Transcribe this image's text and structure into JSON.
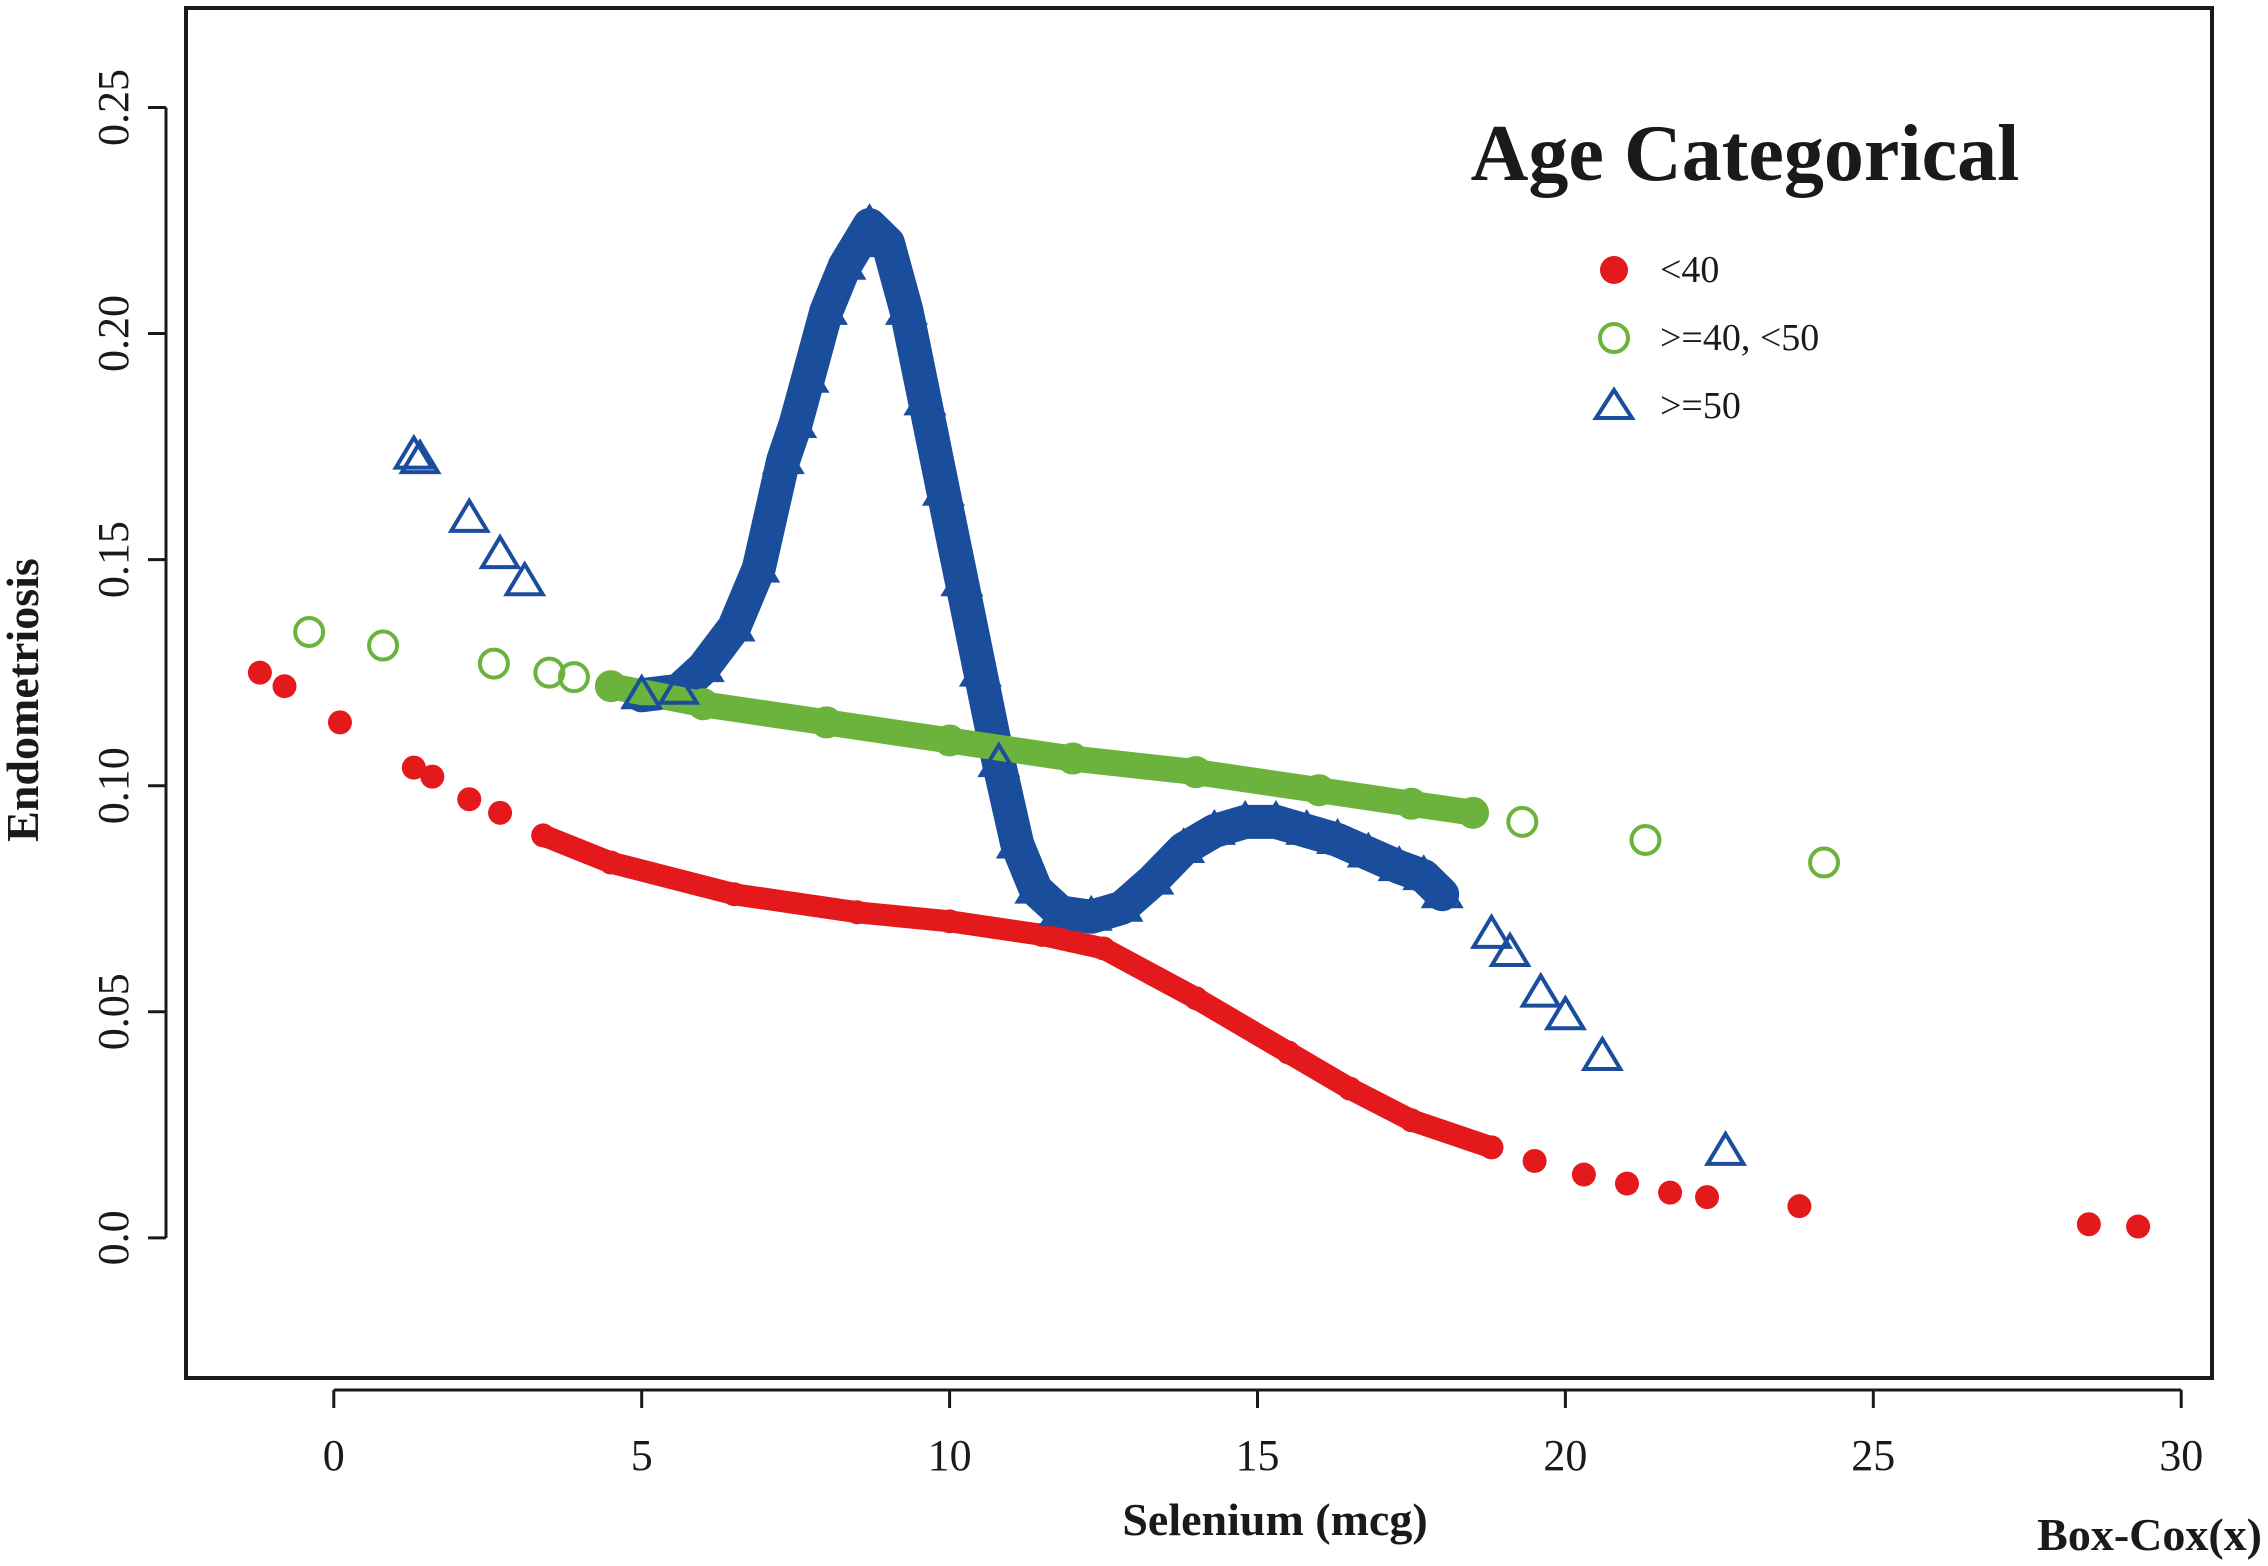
{
  "chart_data": {
    "type": "scatter",
    "title": "",
    "xlabel": "Selenium (mcg)",
    "ylabel": "Endometriosis",
    "corner_label": "Box-Cox(x)",
    "xlim": [
      -2.4,
      30.5
    ],
    "ylim": [
      -0.031,
      0.272
    ],
    "x_ticks": [
      0,
      5,
      10,
      15,
      20,
      25,
      30
    ],
    "x_tick_labels": [
      "0",
      "5",
      "10",
      "15",
      "20",
      "25",
      "30"
    ],
    "y_ticks": [
      0.0,
      0.05,
      0.1,
      0.15,
      0.2,
      0.25
    ],
    "y_tick_labels": [
      "0.0",
      "0.05",
      "0.10",
      "0.15",
      "0.20",
      "0.25"
    ],
    "grid": false,
    "legend": {
      "title": "Age Categorical",
      "position": "top-right"
    },
    "colors": {
      "lt40": "#e3191c",
      "mid": "#6bb33c",
      "ge50": "#1a4d9c",
      "axis": "#1a1a1a"
    },
    "series": [
      {
        "name": "<40",
        "marker": "filled-circle",
        "color": "#e3191c",
        "points": [
          [
            -1.2,
            0.125
          ],
          [
            -0.8,
            0.122
          ],
          [
            0.1,
            0.114
          ],
          [
            1.3,
            0.104
          ],
          [
            1.6,
            0.102
          ],
          [
            2.2,
            0.097
          ],
          [
            2.7,
            0.094
          ],
          [
            3.4,
            0.089
          ],
          [
            4.5,
            0.083
          ],
          [
            6.5,
            0.076
          ],
          [
            8.5,
            0.072
          ],
          [
            10.0,
            0.07
          ],
          [
            11.5,
            0.067
          ],
          [
            12.5,
            0.064
          ],
          [
            14.0,
            0.053
          ],
          [
            15.5,
            0.041
          ],
          [
            16.5,
            0.033
          ],
          [
            17.5,
            0.026
          ],
          [
            18.8,
            0.02
          ],
          [
            19.5,
            0.017
          ],
          [
            20.3,
            0.014
          ],
          [
            21.0,
            0.012
          ],
          [
            21.7,
            0.01
          ],
          [
            22.3,
            0.009
          ],
          [
            23.8,
            0.007
          ],
          [
            28.5,
            0.003
          ],
          [
            29.3,
            0.0025
          ]
        ]
      },
      {
        "name": ">=40, <50",
        "marker": "open-circle",
        "color": "#6bb33c",
        "points": [
          [
            -0.4,
            0.134
          ],
          [
            0.8,
            0.131
          ],
          [
            2.6,
            0.127
          ],
          [
            3.5,
            0.125
          ],
          [
            3.9,
            0.124
          ],
          [
            4.5,
            0.122
          ],
          [
            6.0,
            0.118
          ],
          [
            8.0,
            0.114
          ],
          [
            10.0,
            0.11
          ],
          [
            12.0,
            0.106
          ],
          [
            14.0,
            0.103
          ],
          [
            16.0,
            0.099
          ],
          [
            17.5,
            0.096
          ],
          [
            18.5,
            0.094
          ],
          [
            19.3,
            0.092
          ],
          [
            21.3,
            0.088
          ],
          [
            24.2,
            0.083
          ]
        ]
      },
      {
        "name": ">=50",
        "marker": "open-triangle",
        "color": "#1a4d9c",
        "points": [
          [
            1.3,
            0.173
          ],
          [
            1.4,
            0.172
          ],
          [
            2.2,
            0.159
          ],
          [
            2.7,
            0.151
          ],
          [
            3.1,
            0.145
          ],
          [
            5.0,
            0.12
          ],
          [
            5.6,
            0.121
          ],
          [
            6.0,
            0.126
          ],
          [
            6.5,
            0.135
          ],
          [
            6.9,
            0.148
          ],
          [
            7.3,
            0.172
          ],
          [
            7.5,
            0.18
          ],
          [
            7.7,
            0.19
          ],
          [
            8.0,
            0.205
          ],
          [
            8.3,
            0.215
          ],
          [
            8.7,
            0.224
          ],
          [
            9.0,
            0.22
          ],
          [
            9.3,
            0.205
          ],
          [
            9.6,
            0.185
          ],
          [
            9.9,
            0.165
          ],
          [
            10.2,
            0.145
          ],
          [
            10.5,
            0.125
          ],
          [
            10.8,
            0.105
          ],
          [
            11.1,
            0.087
          ],
          [
            11.4,
            0.077
          ],
          [
            11.8,
            0.072
          ],
          [
            12.3,
            0.071
          ],
          [
            12.8,
            0.073
          ],
          [
            13.3,
            0.079
          ],
          [
            13.8,
            0.086
          ],
          [
            14.3,
            0.09
          ],
          [
            14.8,
            0.092
          ],
          [
            15.3,
            0.092
          ],
          [
            15.8,
            0.09
          ],
          [
            16.3,
            0.088
          ],
          [
            16.8,
            0.085
          ],
          [
            17.3,
            0.082
          ],
          [
            17.7,
            0.08
          ],
          [
            18.0,
            0.076
          ],
          [
            18.8,
            0.067
          ],
          [
            19.1,
            0.063
          ],
          [
            19.6,
            0.054
          ],
          [
            20.0,
            0.049
          ],
          [
            20.6,
            0.04
          ],
          [
            22.6,
            0.019
          ]
        ]
      }
    ]
  }
}
